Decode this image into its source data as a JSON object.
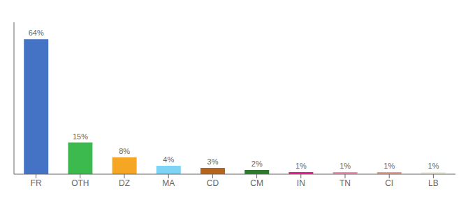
{
  "chart_data": {
    "type": "bar",
    "categories": [
      "FR",
      "OTH",
      "DZ",
      "MA",
      "CD",
      "CM",
      "IN",
      "TN",
      "CI",
      "LB"
    ],
    "values": [
      64,
      15,
      8,
      4,
      3,
      2,
      1,
      1,
      1,
      1
    ],
    "value_labels": [
      "64%",
      "15%",
      "8%",
      "4%",
      "3%",
      "2%",
      "1%",
      "1%",
      "1%",
      "1%"
    ],
    "colors": [
      "#4472c4",
      "#3dba4e",
      "#f5a623",
      "#7dd4f5",
      "#b5651d",
      "#2d7a2d",
      "#e91e8c",
      "#f48fb1",
      "#e8a090",
      "#f5f0d8"
    ],
    "ylim": [
      0,
      72
    ],
    "data_labels": true,
    "tick_labels": "x",
    "grid": false
  }
}
